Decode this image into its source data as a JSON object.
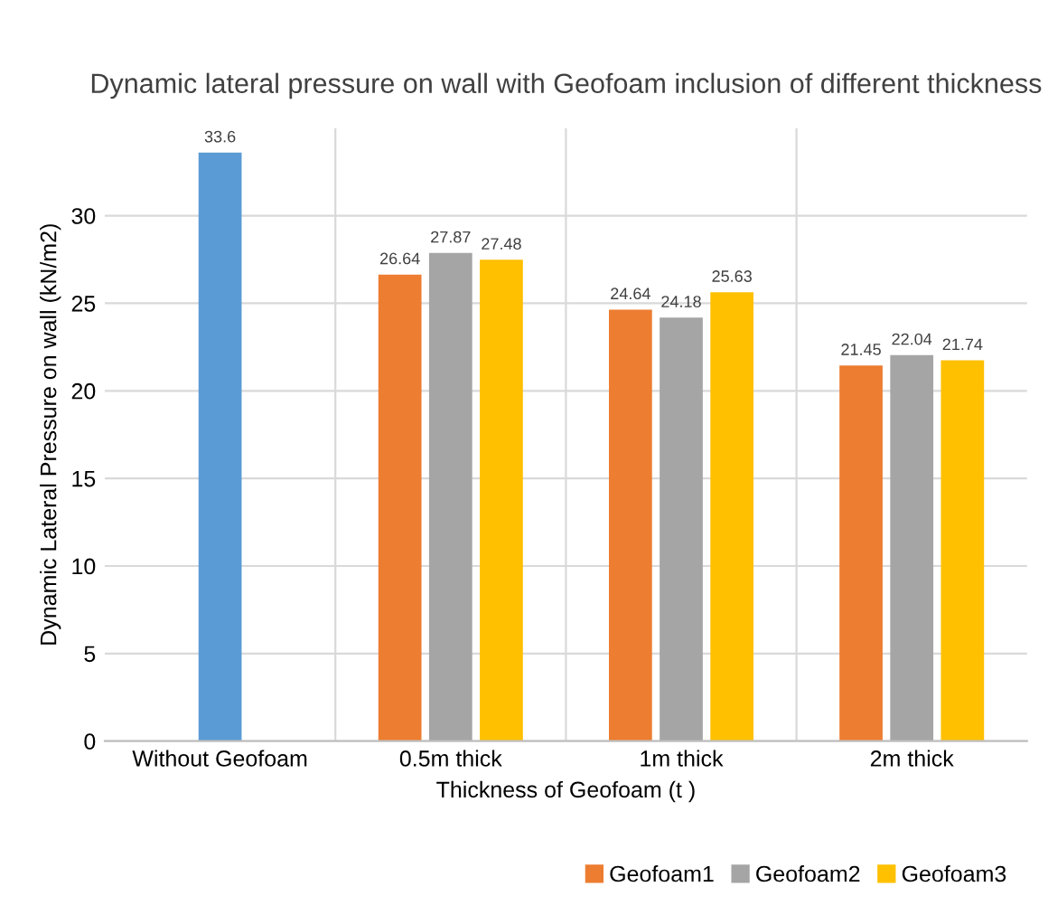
{
  "chart_data": {
    "type": "bar",
    "title": "Dynamic lateral pressure on wall with Geofoam inclusion of different thickness",
    "xlabel": "Thickness of Geofoam (t )",
    "ylabel": "Dynamic Lateral Pressure on wall (kN/m2)",
    "categories": [
      "Without Geofoam",
      "0.5m thick",
      "1m thick",
      "2m thick"
    ],
    "series": [
      {
        "color": "#5b9bd5",
        "values": [
          33.6,
          null,
          null,
          null
        ]
      },
      {
        "name": "Geofoam1",
        "color": "#ed7d31",
        "values": [
          null,
          26.64,
          24.64,
          21.45
        ]
      },
      {
        "name": "Geofoam2",
        "color": "#a5a5a5",
        "values": [
          null,
          27.87,
          24.18,
          22.04
        ]
      },
      {
        "name": "Geofoam3",
        "color": "#ffc000",
        "values": [
          null,
          27.48,
          25.63,
          21.74
        ]
      }
    ],
    "ylim": [
      0,
      35
    ],
    "yticks": [
      0,
      5,
      10,
      15,
      20,
      25,
      30
    ],
    "grid": true,
    "legend": "bottom right",
    "data_labels": true
  }
}
